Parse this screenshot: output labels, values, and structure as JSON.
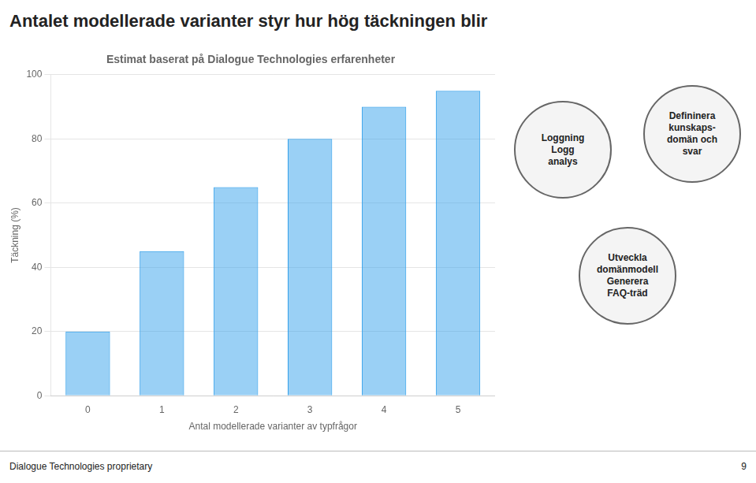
{
  "chart_data": {
    "type": "bar",
    "title": "Antalet modellerade varianter styr hur hög täckningen blir",
    "subtitle": "Estimat baserat på Dialogue Technologies erfarenheter",
    "xlabel": "Antal modellerade varianter av typfrågor",
    "ylabel": "Täckning (%)",
    "categories": [
      0,
      1,
      2,
      3,
      4,
      5
    ],
    "values": [
      20,
      45,
      65,
      80,
      90,
      95
    ],
    "ylim": [
      0,
      100
    ],
    "yticks": [
      0,
      20,
      40,
      60,
      80,
      100
    ],
    "grid": true,
    "annotations": [
      "Dialogue Technologies proprietary",
      "9",
      "Loggning\nLogg\nanalys",
      "Defininera\nkunskaps-\ndomän och\nsvar",
      "Utveckla\ndomänmodell\nGenerera\nFAQ-träd"
    ]
  }
}
